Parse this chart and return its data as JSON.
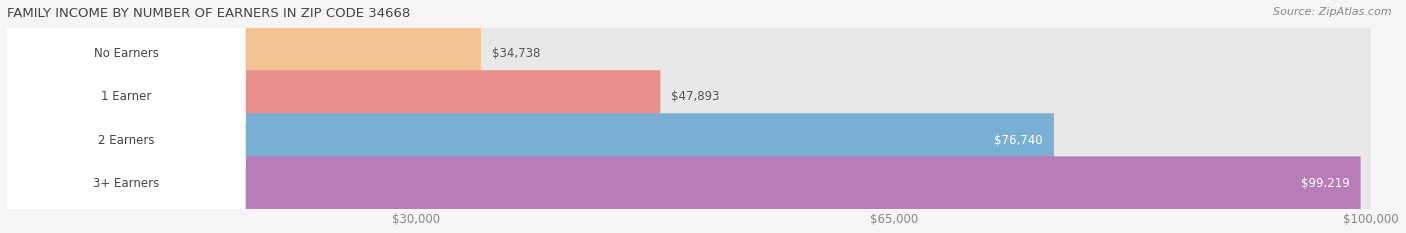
{
  "title": "FAMILY INCOME BY NUMBER OF EARNERS IN ZIP CODE 34668",
  "source": "Source: ZipAtlas.com",
  "categories": [
    "No Earners",
    "1 Earner",
    "2 Earners",
    "3+ Earners"
  ],
  "values": [
    34738,
    47893,
    76740,
    99219
  ],
  "bar_colors": [
    "#f2c293",
    "#e8908a",
    "#7aafd4",
    "#b87cb8"
  ],
  "bar_bg_color": "#e8e8e8",
  "fig_width": 14.06,
  "fig_height": 2.33,
  "bg_color": "#f5f5f5",
  "title_fontsize": 9.5,
  "source_fontsize": 8,
  "bar_height": 0.62,
  "xmin": 0,
  "xmax": 100000,
  "xticks": [
    30000,
    65000,
    100000
  ],
  "xtick_labels": [
    "$30,000",
    "$65,000",
    "$100,000"
  ],
  "value_threshold_inside": 60000,
  "label_box_color": "#ffffff",
  "value_color_inside": "#ffffff",
  "value_color_outside": "#555555",
  "tick_label_color": "#888888",
  "title_color": "#444444",
  "source_color": "#888888",
  "grid_color": "#d0d0d0"
}
